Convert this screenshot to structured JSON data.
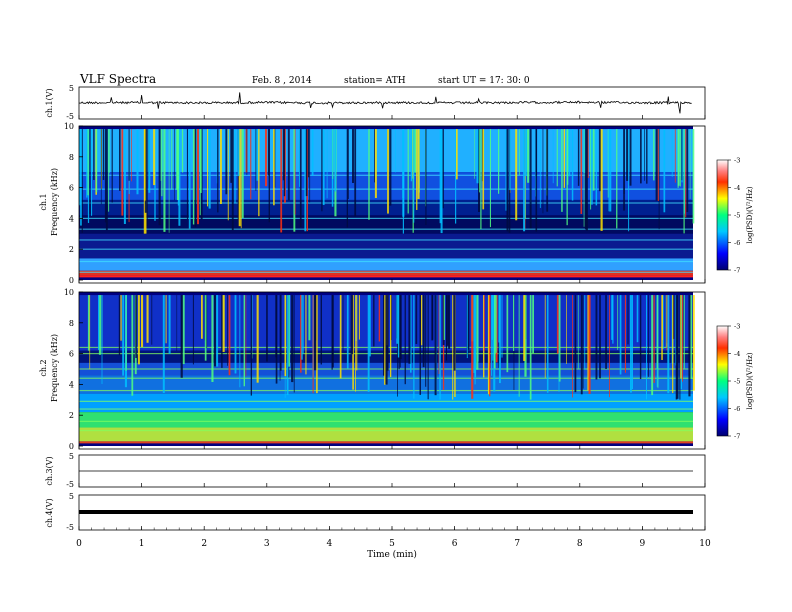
{
  "header": {
    "title": "VLF Spectra",
    "date": "Feb. 8 , 2014",
    "station": "station= ATH",
    "start": "start UT = 17: 30: 0"
  },
  "chart_data": [
    {
      "type": "line",
      "panel": "ch1-waveform",
      "ylabel": "ch.1(V)",
      "ylim": [
        -5,
        5
      ],
      "yticks": [
        "5",
        "-5"
      ],
      "x": [
        0,
        1,
        2,
        3,
        4,
        5,
        6,
        7,
        8,
        9,
        9.8
      ],
      "y": [
        0.2,
        0.3,
        0.1,
        0.4,
        0.0,
        0.3,
        0.1,
        0.3,
        0.5,
        0.2,
        0.2
      ]
    },
    {
      "type": "heatmap",
      "panel": "ch1-spectrogram",
      "ylabel": "ch.1 Frequency (kHz)",
      "ylim": [
        0,
        10
      ],
      "yticks": [
        "0",
        "2",
        "4",
        "6",
        "8",
        "10"
      ],
      "colorbar": {
        "label": "log(PSD)(V²/Hz)",
        "range": [
          -7,
          -3
        ],
        "ticks": [
          "-3",
          "-4",
          "-5",
          "-6",
          "-7"
        ]
      }
    },
    {
      "type": "heatmap",
      "panel": "ch2-spectrogram",
      "ylabel": "ch.2 Frequency (kHz)",
      "ylim": [
        0,
        10
      ],
      "yticks": [
        "0",
        "2",
        "4",
        "6",
        "8",
        "10"
      ],
      "colorbar": {
        "label": "log(PSD)(V²/Hz)",
        "range": [
          -7,
          -3
        ],
        "ticks": [
          "-3",
          "-4",
          "-5",
          "-6",
          "-7"
        ]
      }
    },
    {
      "type": "line",
      "panel": "ch3-waveform",
      "ylabel": "ch.3(V)",
      "ylim": [
        -5,
        5
      ],
      "yticks": [
        "5",
        "-5"
      ],
      "x": [
        0,
        9.8
      ],
      "y": [
        0,
        0
      ]
    },
    {
      "type": "line",
      "panel": "ch4-waveform",
      "ylabel": "ch.4(V)",
      "ylim": [
        -5,
        5
      ],
      "yticks": [
        "5",
        "-5"
      ],
      "x": [
        0,
        9.8
      ],
      "y": [
        0,
        0
      ]
    }
  ],
  "xaxis": {
    "label": "Time (min)",
    "ticks": [
      "0",
      "1",
      "2",
      "3",
      "4",
      "5",
      "6",
      "7",
      "8",
      "9",
      "10"
    ],
    "xlim": [
      0,
      10
    ]
  }
}
